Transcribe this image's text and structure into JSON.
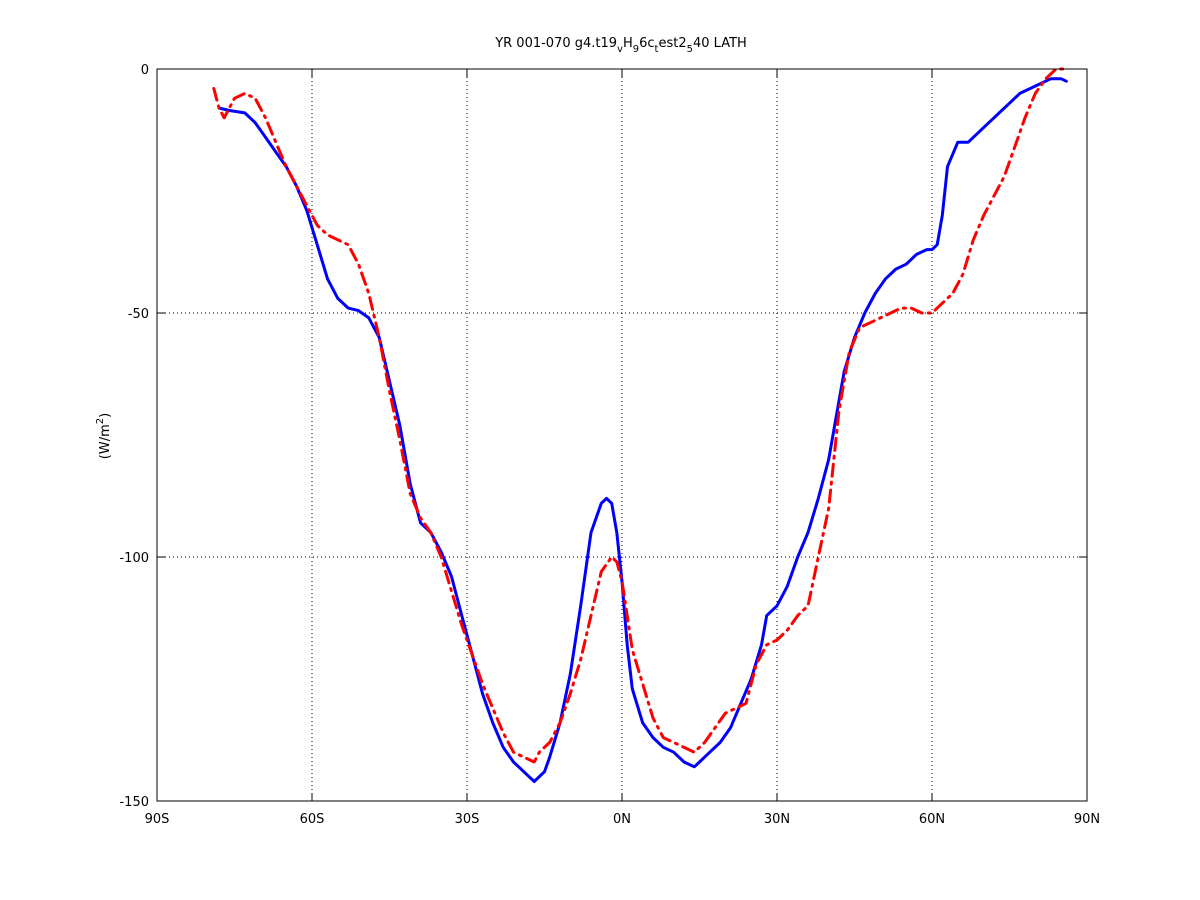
{
  "chart_data": {
    "type": "line",
    "title": {
      "prefix": "YR 001-070 g4.t19",
      "sub1": "v",
      "mid1": "H",
      "sub2": "9",
      "mid2": "6c",
      "sub3": "t",
      "mid3": "est2",
      "sub4": "5",
      "suffix": "40 LATH"
    },
    "ylabel": {
      "base": "(W/m",
      "sup": "2",
      "close": ")"
    },
    "xlim": [
      -90,
      90
    ],
    "ylim": [
      -150,
      0
    ],
    "x_ticks": [
      {
        "value": -90,
        "label": "90S"
      },
      {
        "value": -60,
        "label": "60S"
      },
      {
        "value": -30,
        "label": "30S"
      },
      {
        "value": 0,
        "label": "0N"
      },
      {
        "value": 30,
        "label": "30N"
      },
      {
        "value": 60,
        "label": "60N"
      },
      {
        "value": 90,
        "label": "90N"
      }
    ],
    "y_ticks": [
      {
        "value": 0,
        "label": "0"
      },
      {
        "value": -50,
        "label": "-50"
      },
      {
        "value": -100,
        "label": "-100"
      },
      {
        "value": -150,
        "label": "-150"
      }
    ],
    "grid": true,
    "series": [
      {
        "color": "#0000ff",
        "dash": "solid",
        "x": [
          -78,
          -76,
          -73,
          -71,
          -69,
          -67,
          -65,
          -63,
          -61,
          -59,
          -57,
          -55,
          -53,
          -51,
          -49,
          -47,
          -45,
          -43,
          -41,
          -39,
          -37,
          -35,
          -33,
          -31,
          -29,
          -27,
          -25,
          -23,
          -21,
          -19,
          -17,
          -15,
          -14,
          -12,
          -10,
          -8,
          -6,
          -4,
          -3,
          -2,
          -1,
          0,
          1,
          2,
          4,
          6,
          8,
          10,
          12,
          14,
          15,
          17,
          19,
          21,
          23,
          25,
          27,
          28,
          30,
          32,
          34,
          36,
          38,
          40,
          42,
          43,
          45,
          47,
          49,
          51,
          53,
          55,
          57,
          59,
          60,
          61,
          62,
          63,
          65,
          67,
          69,
          71,
          73,
          75,
          77,
          79,
          81,
          83,
          85,
          86
        ],
        "y": [
          -8,
          -8.5,
          -9,
          -11,
          -14,
          -17,
          -20,
          -24,
          -29,
          -36,
          -43,
          -47,
          -49,
          -49.5,
          -51,
          -55,
          -64,
          -73,
          -85,
          -93,
          -95,
          -99,
          -104,
          -112,
          -120,
          -128,
          -134,
          -139,
          -142,
          -144,
          -146,
          -144,
          -141,
          -134,
          -124,
          -110,
          -95,
          -89,
          -88,
          -89,
          -95,
          -105,
          -118,
          -127,
          -134,
          -137,
          -139,
          -140,
          -142,
          -143,
          -142,
          -140,
          -138,
          -135,
          -130,
          -125,
          -118,
          -112,
          -110,
          -106,
          -100,
          -95,
          -88,
          -80,
          -68,
          -62,
          -55,
          -50,
          -46,
          -43,
          -41,
          -40,
          -38,
          -37,
          -37,
          -36,
          -30,
          -20,
          -15,
          -15,
          -13,
          -11,
          -9,
          -7,
          -5,
          -4,
          -3,
          -2,
          -2,
          -2.5
        ]
      },
      {
        "color": "#ff0000",
        "dash": "dashdot",
        "x": [
          -79,
          -78,
          -77,
          -75,
          -73,
          -71,
          -69,
          -67,
          -65,
          -63,
          -61,
          -59,
          -57,
          -55,
          -53,
          -51,
          -49,
          -47,
          -45,
          -43,
          -41,
          -39,
          -37,
          -35,
          -33,
          -31,
          -29,
          -27,
          -25,
          -23,
          -21,
          -19,
          -17,
          -16,
          -14,
          -12,
          -10,
          -8,
          -6,
          -4,
          -2,
          -1,
          0,
          1,
          2,
          4,
          6,
          8,
          10,
          12,
          14,
          16,
          18,
          20,
          22,
          24,
          26,
          28,
          30,
          32,
          34,
          36,
          38,
          40,
          42,
          44,
          46,
          48,
          50,
          52,
          54,
          56,
          58,
          60,
          62,
          64,
          66,
          68,
          70,
          72,
          74,
          76,
          78,
          80,
          82,
          84,
          86
        ],
        "y": [
          -4,
          -8,
          -10,
          -6,
          -5,
          -6,
          -10,
          -15,
          -20,
          -24,
          -28,
          -32,
          -34,
          -35,
          -36,
          -40,
          -46,
          -55,
          -66,
          -76,
          -87,
          -92,
          -95,
          -100,
          -107,
          -114,
          -120,
          -126,
          -131,
          -136,
          -140,
          -141,
          -142,
          -140,
          -138,
          -134,
          -128,
          -121,
          -112,
          -103,
          -100,
          -101,
          -105,
          -112,
          -119,
          -126,
          -133,
          -137,
          -138,
          -139,
          -140,
          -138,
          -135,
          -132,
          -131,
          -130,
          -122,
          -118,
          -117,
          -115,
          -112,
          -110,
          -100,
          -90,
          -70,
          -58,
          -53,
          -52,
          -51,
          -50,
          -49,
          -49,
          -50,
          -50,
          -48,
          -46,
          -42,
          -35,
          -30,
          -26,
          -22,
          -16,
          -10,
          -5,
          -2,
          0,
          0
        ]
      }
    ]
  }
}
